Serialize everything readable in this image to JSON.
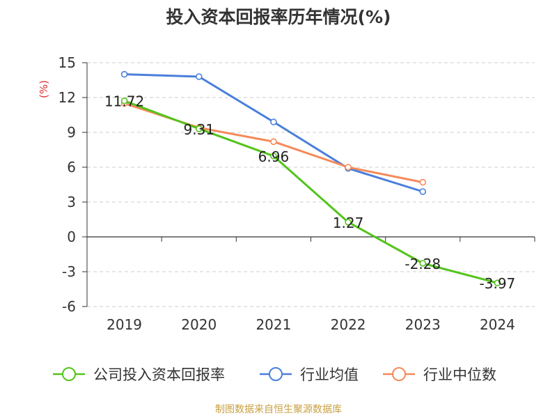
{
  "chart_data": {
    "type": "line",
    "title": "投入资本回报率历年情况(%)",
    "ylabel": "(%)",
    "xlabel": "",
    "categories": [
      "2019",
      "2020",
      "2021",
      "2022",
      "2023",
      "2024"
    ],
    "ylim": [
      -6,
      15
    ],
    "yticks": [
      15,
      12,
      9,
      6,
      3,
      0,
      -3,
      -6
    ],
    "grid": true,
    "legend_position": "bottom",
    "series": [
      {
        "name": "公司投入资本回报率",
        "color": "#52c41a",
        "values": [
          11.72,
          9.31,
          6.96,
          1.27,
          -2.28,
          -3.97
        ],
        "labels": [
          "11.72",
          "9.31",
          "6.96",
          "1.27",
          "-2.28",
          "-3.97"
        ]
      },
      {
        "name": "行业均值",
        "color": "#4a7fdb",
        "values": [
          14.0,
          13.8,
          9.9,
          5.9,
          3.9,
          null
        ]
      },
      {
        "name": "行业中位数",
        "color": "#f5895a",
        "values": [
          11.5,
          9.4,
          8.2,
          6.0,
          4.7,
          null
        ]
      }
    ]
  },
  "footer": {
    "source": "制图数据来自恒生聚源数据库"
  }
}
